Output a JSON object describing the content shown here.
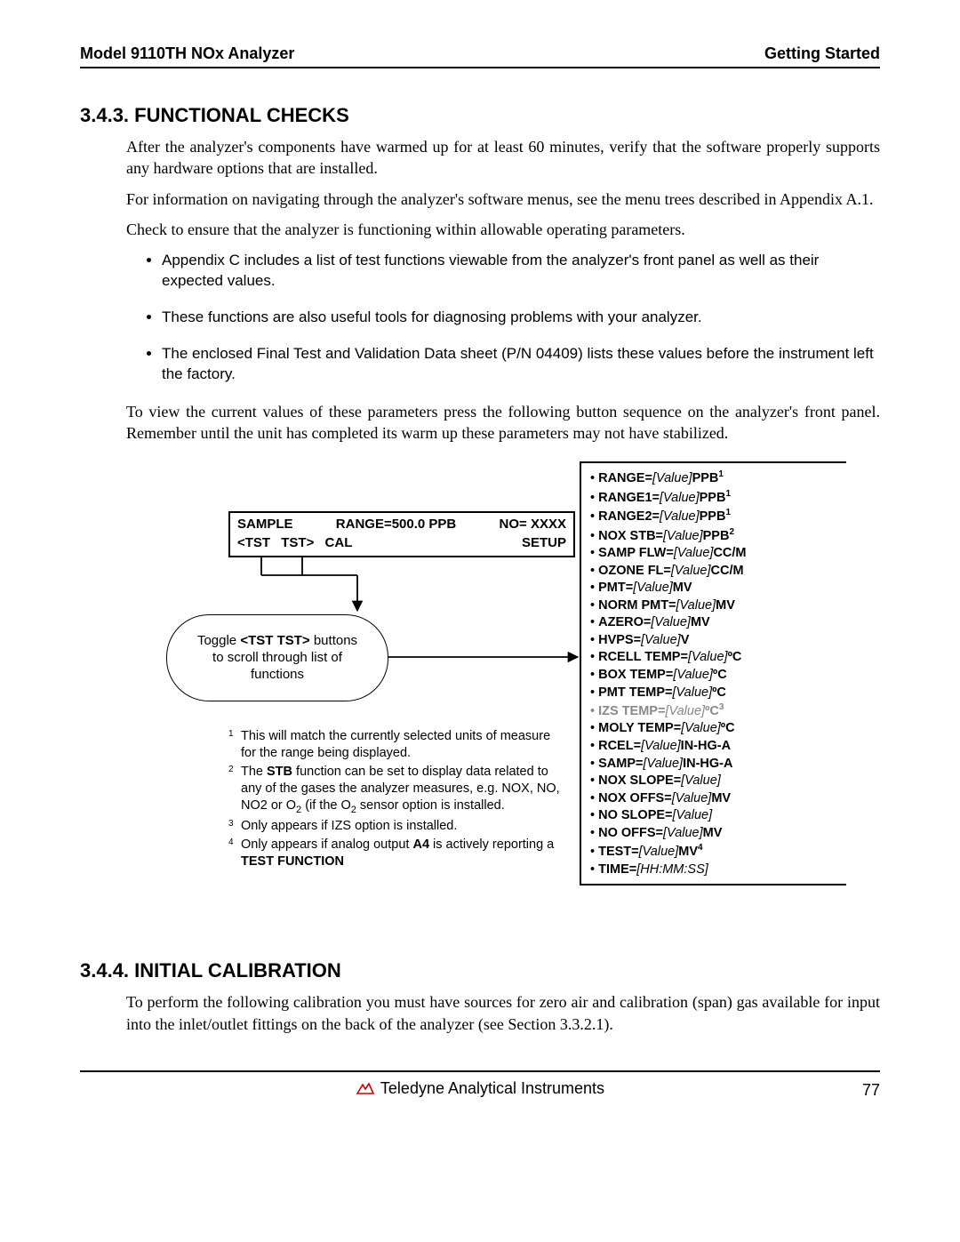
{
  "header": {
    "left": "Model 9110TH NOx Analyzer",
    "right": "Getting Started"
  },
  "section343": {
    "title": "3.4.3. FUNCTIONAL CHECKS",
    "p1": "After the analyzer's components have warmed up for at least 60 minutes, verify that the software properly supports any hardware options that are installed.",
    "p2": "For information on navigating through the analyzer's software menus, see the menu trees described in Appendix A.1.",
    "p3": "Check to ensure that the analyzer is functioning within allowable operating parameters.",
    "b1": "Appendix C includes a list of test functions viewable from the analyzer's front panel as well as their expected values.",
    "b2": "These functions are also useful tools for diagnosing problems with your analyzer.",
    "b3": "The enclosed Final Test and Validation Data sheet (P/N 04409) lists these values before the instrument left the factory.",
    "p4": "To view the current values of these parameters press the following button sequence on the analyzer's front panel.  Remember until the unit has completed its warm up these parameters may not have stabilized."
  },
  "panel": {
    "sample": "SAMPLE",
    "range": "RANGE=500.0 PPB",
    "no": "NO= XXXX",
    "btn_prev": "<TST",
    "btn_next": "TST>",
    "btn_cal": "CAL",
    "btn_setup": "SETUP"
  },
  "capsule": {
    "l1": "Toggle <TST TST> buttons",
    "l2": "to scroll through list of",
    "l3": "functions"
  },
  "params": [
    {
      "name": "RANGE=",
      "val": "[Value]",
      "unit": "PPB",
      "sup": "1",
      "grey": false
    },
    {
      "name": "RANGE1=",
      "val": "[Value]",
      "unit": "PPB",
      "sup": "1",
      "grey": false
    },
    {
      "name": "RANGE2=",
      "val": "[Value]",
      "unit": "PPB",
      "sup": "1",
      "grey": false
    },
    {
      "name": "NOX STB=",
      "val": "[Value]",
      "unit": "PPB",
      "sup": "2",
      "grey": false
    },
    {
      "name": "SAMP FLW=",
      "val": "[Value]",
      "unit": "CC/M",
      "sup": "",
      "grey": false
    },
    {
      "name": "OZONE FL=",
      "val": "[Value]",
      "unit": "CC/M",
      "sup": "",
      "grey": false
    },
    {
      "name": "PMT=",
      "val": "[Value]",
      "unit": "MV",
      "sup": "",
      "grey": false
    },
    {
      "name": "NORM PMT=",
      "val": "[Value]",
      "unit": "MV",
      "sup": "",
      "grey": false
    },
    {
      "name": "AZERO=",
      "val": "[Value]",
      "unit": "MV",
      "sup": "",
      "grey": false
    },
    {
      "name": "HVPS=",
      "val": "[Value]",
      "unit": "V",
      "sup": "",
      "grey": false
    },
    {
      "name": "RCELL TEMP=",
      "val": "[Value]",
      "unit": "ºC",
      "sup": "",
      "grey": false
    },
    {
      "name": "BOX TEMP=",
      "val": "[Value]",
      "unit": "ºC",
      "sup": "",
      "grey": false
    },
    {
      "name": "PMT TEMP=",
      "val": "[Value]",
      "unit": "ºC",
      "sup": "",
      "grey": false
    },
    {
      "name": "IZS TEMP=",
      "val": "[Value]",
      "unit": "ºC",
      "sup": "3",
      "grey": true
    },
    {
      "name": "MOLY TEMP=",
      "val": "[Value]",
      "unit": "ºC",
      "sup": "",
      "grey": false
    },
    {
      "name": "RCEL=",
      "val": "[Value]",
      "unit": "IN-HG-A",
      "sup": "",
      "grey": false
    },
    {
      "name": "SAMP=",
      "val": "[Value]",
      "unit": "IN-HG-A",
      "sup": "",
      "grey": false
    },
    {
      "name": "NOX SLOPE=",
      "val": "[Value]",
      "unit": "",
      "sup": "",
      "grey": false
    },
    {
      "name": "NOX OFFS=",
      "val": "[Value]",
      "unit": "MV",
      "sup": "",
      "grey": false
    },
    {
      "name": "NO SLOPE=",
      "val": "[Value]",
      "unit": "",
      "sup": "",
      "grey": false
    },
    {
      "name": "NO OFFS=",
      "val": "[Value]",
      "unit": "MV",
      "sup": "",
      "grey": false
    },
    {
      "name": "TEST=",
      "val": "[Value]",
      "unit": "MV",
      "sup": "4",
      "grey": false
    },
    {
      "name": "TIME=",
      "val": "[HH:MM:SS]",
      "unit": "",
      "sup": "",
      "grey": false
    }
  ],
  "footnotes": {
    "n1": "This will match the currently selected units of measure for the range being displayed.",
    "n2a": "The ",
    "n2b": "STB",
    "n2c": " function can be set to display data related to any of the gases the analyzer measures, e.g. NOX, NO, NO2 or O",
    "n2d": " (if the O",
    "n2e": " sensor option is installed.",
    "n3": "Only appears if IZS  option is installed.",
    "n4a": "Only appears if  analog output ",
    "n4b": "A4",
    "n4c": " is actively reporting a ",
    "n4d": "TEST FUNCTION"
  },
  "section344": {
    "title": "3.4.4. INITIAL CALIBRATION",
    "p1": "To perform the following calibration you must have sources for zero air and calibration (span) gas available for input into the inlet/outlet fittings on the back of the analyzer (see Section 3.3.2.1)."
  },
  "footer": {
    "company": "Teledyne Analytical Instruments",
    "page": "77"
  }
}
